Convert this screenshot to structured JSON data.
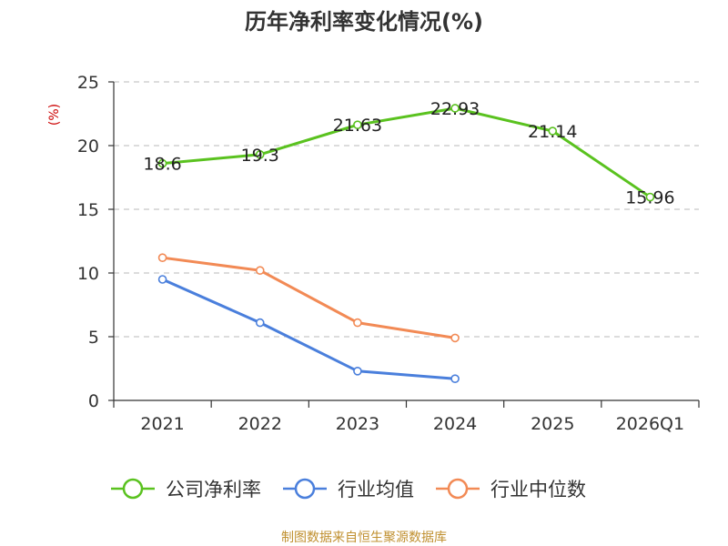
{
  "chart_data": {
    "type": "line",
    "title": "历年净利率变化情况(%)",
    "ylabel": "(%)",
    "xlabel": "",
    "categories": [
      "2021",
      "2022",
      "2023",
      "2024",
      "2025",
      "2026Q1"
    ],
    "ylim": [
      0,
      25
    ],
    "yticks": [
      0,
      5,
      10,
      15,
      20,
      25
    ],
    "grid": true,
    "legend_position": "bottom",
    "series": [
      {
        "name": "公司净利率",
        "color": "#5ac21f",
        "values": [
          18.6,
          19.3,
          21.63,
          22.93,
          21.14,
          15.96
        ],
        "labels": [
          "18.6",
          "19.3",
          "21.63",
          "22.93",
          "21.14",
          "15.96"
        ]
      },
      {
        "name": "行业均值",
        "color": "#4a7fdc",
        "values": [
          9.5,
          6.1,
          2.3,
          1.7,
          null,
          null
        ]
      },
      {
        "name": "行业中位数",
        "color": "#f28a55",
        "values": [
          11.2,
          10.2,
          6.1,
          4.9,
          null,
          null
        ]
      }
    ],
    "source": "制图数据来自恒生聚源数据库"
  }
}
